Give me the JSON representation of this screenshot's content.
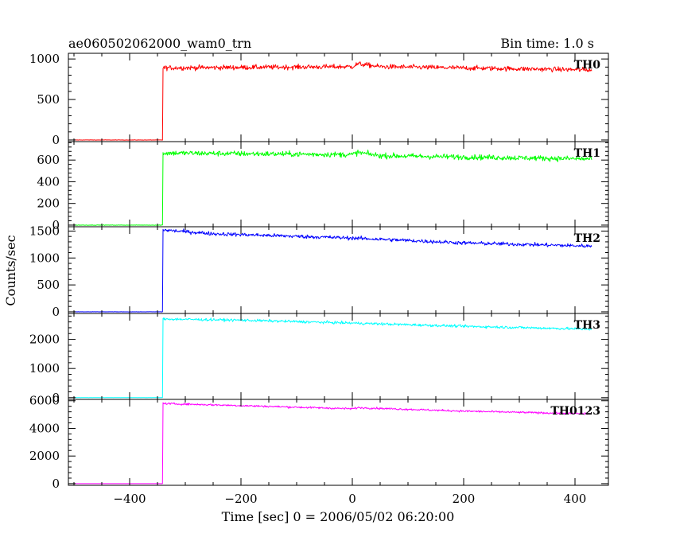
{
  "header": {
    "title": "ae060502062000_wam0_trn",
    "bin_time": "Bin time: 1.0 s"
  },
  "axes": {
    "xlabel": "Time [sec] 0 = 2006/05/02 06:20:00",
    "ylabel": "Counts/sec"
  },
  "chart_data": {
    "type": "line",
    "title": "ae060502062000_wam0_trn",
    "xlabel": "Time [sec] 0 = 2006/05/02 06:20:00",
    "ylabel": "Counts/sec",
    "xlim": [
      -510,
      460
    ],
    "x_ticks": [
      "-400",
      "-200",
      "0",
      "200",
      "400"
    ],
    "x_range": [
      -500,
      430
    ],
    "onset_time": -340,
    "panels": [
      {
        "name": "TH0",
        "color": "#ff0000",
        "ylim": [
          -20,
          1070
        ],
        "y_ticks": [
          "0",
          "500",
          "1000"
        ],
        "pre_level": 0,
        "profile": [
          [
            -340,
            890
          ],
          [
            0,
            905
          ],
          [
            10,
            940
          ],
          [
            50,
            905
          ],
          [
            430,
            865
          ]
        ],
        "noise": 30
      },
      {
        "name": "TH1",
        "color": "#00ff00",
        "ylim": [
          -15,
          770
        ],
        "y_ticks": [
          "0",
          "200",
          "400",
          "600"
        ],
        "pre_level": 0,
        "profile": [
          [
            -340,
            665
          ],
          [
            0,
            650
          ],
          [
            10,
            670
          ],
          [
            50,
            640
          ],
          [
            430,
            610
          ]
        ],
        "noise": 25
      },
      {
        "name": "TH2",
        "color": "#0000ff",
        "ylim": [
          -30,
          1580
        ],
        "y_ticks": [
          "0",
          "500",
          "1000",
          "1500"
        ],
        "pre_level": 0,
        "profile": [
          [
            -340,
            1520
          ],
          [
            -250,
            1450
          ],
          [
            0,
            1370
          ],
          [
            200,
            1280
          ],
          [
            430,
            1220
          ]
        ],
        "noise": 35
      },
      {
        "name": "TH3",
        "color": "#00ffff",
        "ylim": [
          -60,
          2890
        ],
        "y_ticks": [
          "0",
          "1000",
          "2000"
        ],
        "pre_level": 0,
        "profile": [
          [
            -340,
            2700
          ],
          [
            -200,
            2660
          ],
          [
            0,
            2560
          ],
          [
            200,
            2450
          ],
          [
            430,
            2350
          ]
        ],
        "noise": 45
      },
      {
        "name": "TH0123",
        "color": "#ff00ff",
        "ylim": [
          -120,
          6100
        ],
        "y_ticks": [
          "0",
          "2000",
          "4000",
          "6000"
        ],
        "pre_level": 0,
        "profile": [
          [
            -340,
            5800
          ],
          [
            -200,
            5650
          ],
          [
            0,
            5420
          ],
          [
            10,
            5500
          ],
          [
            200,
            5250
          ],
          [
            430,
            5050
          ]
        ],
        "noise": 70
      }
    ]
  }
}
